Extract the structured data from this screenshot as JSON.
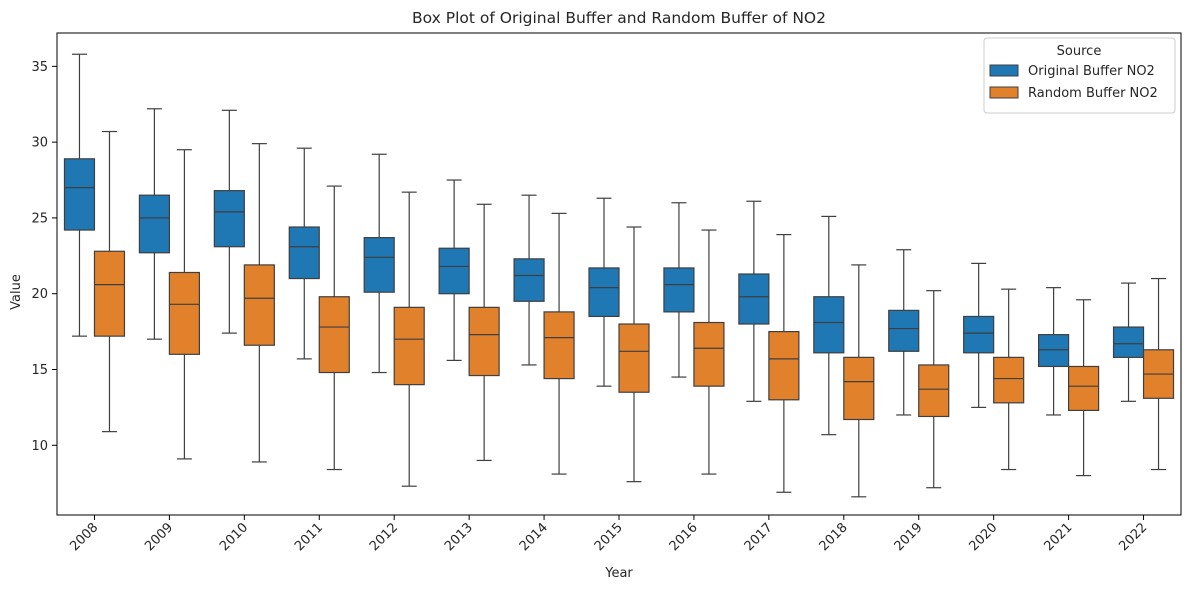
{
  "chart_data": {
    "type": "box",
    "title": "Box Plot of Original Buffer and Random Buffer of NO2",
    "xlabel": "Year",
    "ylabel": "Value",
    "ylim": [
      5.4,
      37.2
    ],
    "yticks": [
      10,
      15,
      20,
      25,
      30,
      35
    ],
    "grid": false,
    "legend": {
      "title": "Source",
      "position": "top-right"
    },
    "categories": [
      "2008",
      "2009",
      "2010",
      "2011",
      "2012",
      "2013",
      "2014",
      "2015",
      "2016",
      "2017",
      "2018",
      "2019",
      "2020",
      "2021",
      "2022"
    ],
    "series": [
      {
        "name": "Original Buffer NO2",
        "color": "#1f77b4",
        "boxes": [
          {
            "whislo": 17.2,
            "q1": 24.2,
            "med": 27.0,
            "q3": 28.9,
            "whishi": 35.8
          },
          {
            "whislo": 17.0,
            "q1": 22.7,
            "med": 25.0,
            "q3": 26.5,
            "whishi": 32.2
          },
          {
            "whislo": 17.4,
            "q1": 23.1,
            "med": 25.4,
            "q3": 26.8,
            "whishi": 32.1
          },
          {
            "whislo": 15.7,
            "q1": 21.0,
            "med": 23.1,
            "q3": 24.4,
            "whishi": 29.6
          },
          {
            "whislo": 14.8,
            "q1": 20.1,
            "med": 22.4,
            "q3": 23.7,
            "whishi": 29.2
          },
          {
            "whislo": 15.6,
            "q1": 20.0,
            "med": 21.8,
            "q3": 23.0,
            "whishi": 27.5
          },
          {
            "whislo": 15.3,
            "q1": 19.5,
            "med": 21.2,
            "q3": 22.3,
            "whishi": 26.5
          },
          {
            "whislo": 13.9,
            "q1": 18.5,
            "med": 20.4,
            "q3": 21.7,
            "whishi": 26.3
          },
          {
            "whislo": 14.5,
            "q1": 18.8,
            "med": 20.6,
            "q3": 21.7,
            "whishi": 26.0
          },
          {
            "whislo": 12.9,
            "q1": 18.0,
            "med": 19.8,
            "q3": 21.3,
            "whishi": 26.1
          },
          {
            "whislo": 10.7,
            "q1": 16.1,
            "med": 18.1,
            "q3": 19.8,
            "whishi": 25.1
          },
          {
            "whislo": 12.0,
            "q1": 16.2,
            "med": 17.7,
            "q3": 18.9,
            "whishi": 22.9
          },
          {
            "whislo": 12.5,
            "q1": 16.1,
            "med": 17.4,
            "q3": 18.5,
            "whishi": 22.0
          },
          {
            "whislo": 12.0,
            "q1": 15.2,
            "med": 16.3,
            "q3": 17.3,
            "whishi": 20.4
          },
          {
            "whislo": 12.9,
            "q1": 15.8,
            "med": 16.7,
            "q3": 17.8,
            "whishi": 20.7
          }
        ]
      },
      {
        "name": "Random Buffer NO2",
        "color": "#e1812c",
        "boxes": [
          {
            "whislo": 10.9,
            "q1": 17.2,
            "med": 20.6,
            "q3": 22.8,
            "whishi": 30.7
          },
          {
            "whislo": 9.1,
            "q1": 16.0,
            "med": 19.3,
            "q3": 21.4,
            "whishi": 29.5
          },
          {
            "whislo": 8.9,
            "q1": 16.6,
            "med": 19.7,
            "q3": 21.9,
            "whishi": 29.9
          },
          {
            "whislo": 8.4,
            "q1": 14.8,
            "med": 17.8,
            "q3": 19.8,
            "whishi": 27.1
          },
          {
            "whislo": 7.3,
            "q1": 14.0,
            "med": 17.0,
            "q3": 19.1,
            "whishi": 26.7
          },
          {
            "whislo": 9.0,
            "q1": 14.6,
            "med": 17.3,
            "q3": 19.1,
            "whishi": 25.9
          },
          {
            "whislo": 8.1,
            "q1": 14.4,
            "med": 17.1,
            "q3": 18.8,
            "whishi": 25.3
          },
          {
            "whislo": 7.6,
            "q1": 13.5,
            "med": 16.2,
            "q3": 18.0,
            "whishi": 24.4
          },
          {
            "whislo": 8.1,
            "q1": 13.9,
            "med": 16.4,
            "q3": 18.1,
            "whishi": 24.2
          },
          {
            "whislo": 6.9,
            "q1": 13.0,
            "med": 15.7,
            "q3": 17.5,
            "whishi": 23.9
          },
          {
            "whislo": 6.6,
            "q1": 11.7,
            "med": 14.2,
            "q3": 15.8,
            "whishi": 21.9
          },
          {
            "whislo": 7.2,
            "q1": 11.9,
            "med": 13.7,
            "q3": 15.3,
            "whishi": 20.2
          },
          {
            "whislo": 8.4,
            "q1": 12.8,
            "med": 14.4,
            "q3": 15.8,
            "whishi": 20.3
          },
          {
            "whislo": 8.0,
            "q1": 12.3,
            "med": 13.9,
            "q3": 15.2,
            "whishi": 19.6
          },
          {
            "whislo": 8.4,
            "q1": 13.1,
            "med": 14.7,
            "q3": 16.3,
            "whishi": 21.0
          }
        ]
      }
    ]
  }
}
